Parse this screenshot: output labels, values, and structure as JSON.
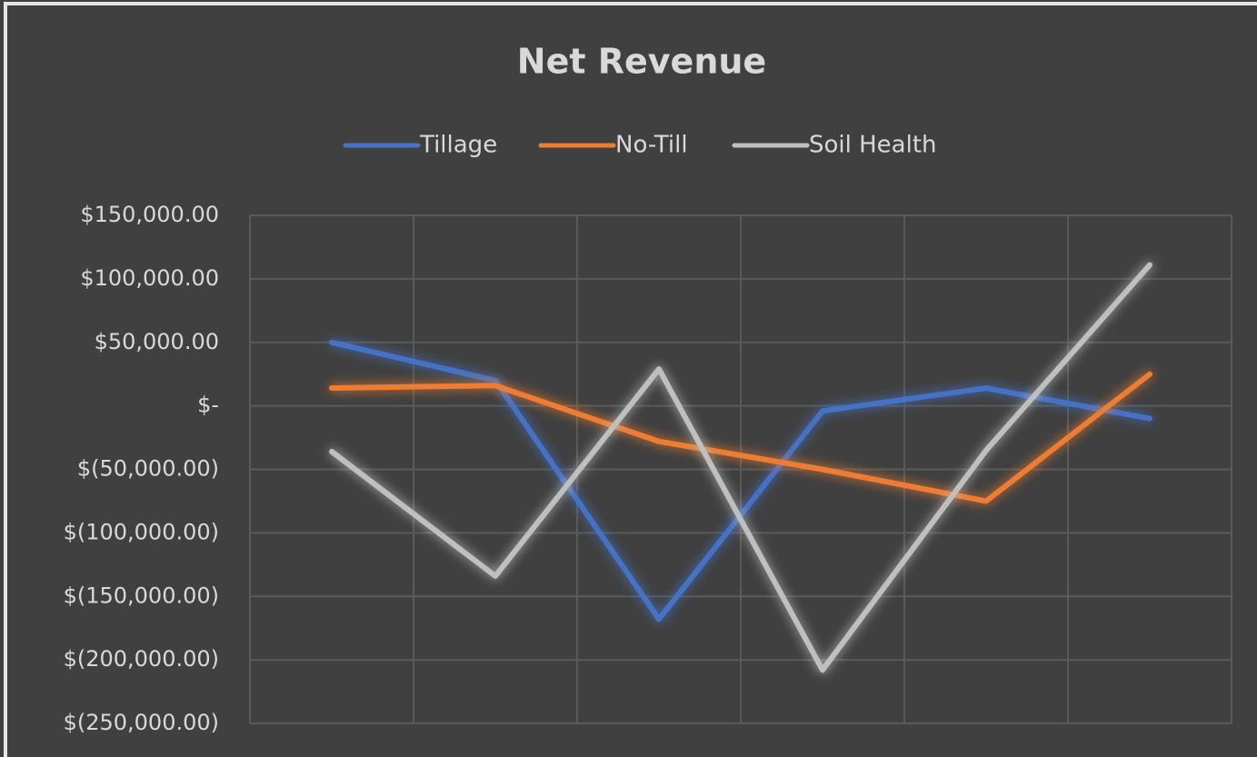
{
  "chart_data": {
    "type": "line",
    "title": "Net Revenue",
    "categories": [
      null,
      null,
      null,
      null,
      null,
      null
    ],
    "series": [
      {
        "name": "Tillage",
        "color": "#4472c4",
        "values": [
          50000,
          20000,
          -168000,
          -4000,
          14000,
          -10000
        ]
      },
      {
        "name": "No-Till",
        "color": "#ed7d31",
        "values": [
          14000,
          16000,
          -28000,
          -50000,
          -75000,
          25000
        ]
      },
      {
        "name": "Soil Health",
        "color": "#bfbfbf",
        "values": [
          -36000,
          -134000,
          29000,
          -208000,
          -35000,
          111000
        ]
      }
    ],
    "ylim": [
      -250000,
      150000
    ],
    "yticks": [
      {
        "value": 150000,
        "label": "$150,000.00"
      },
      {
        "value": 100000,
        "label": "$100,000.00"
      },
      {
        "value": 50000,
        "label": "$50,000.00"
      },
      {
        "value": 0,
        "label": "$-"
      },
      {
        "value": -50000,
        "label": "$(50,000.00)"
      },
      {
        "value": -100000,
        "label": "$(100,000.00)"
      },
      {
        "value": -150000,
        "label": "$(150,000.00)"
      },
      {
        "value": -200000,
        "label": "$(200,000.00)"
      },
      {
        "value": -250000,
        "label": "$(250,000.00)"
      }
    ],
    "grid": true,
    "legend": "top"
  }
}
